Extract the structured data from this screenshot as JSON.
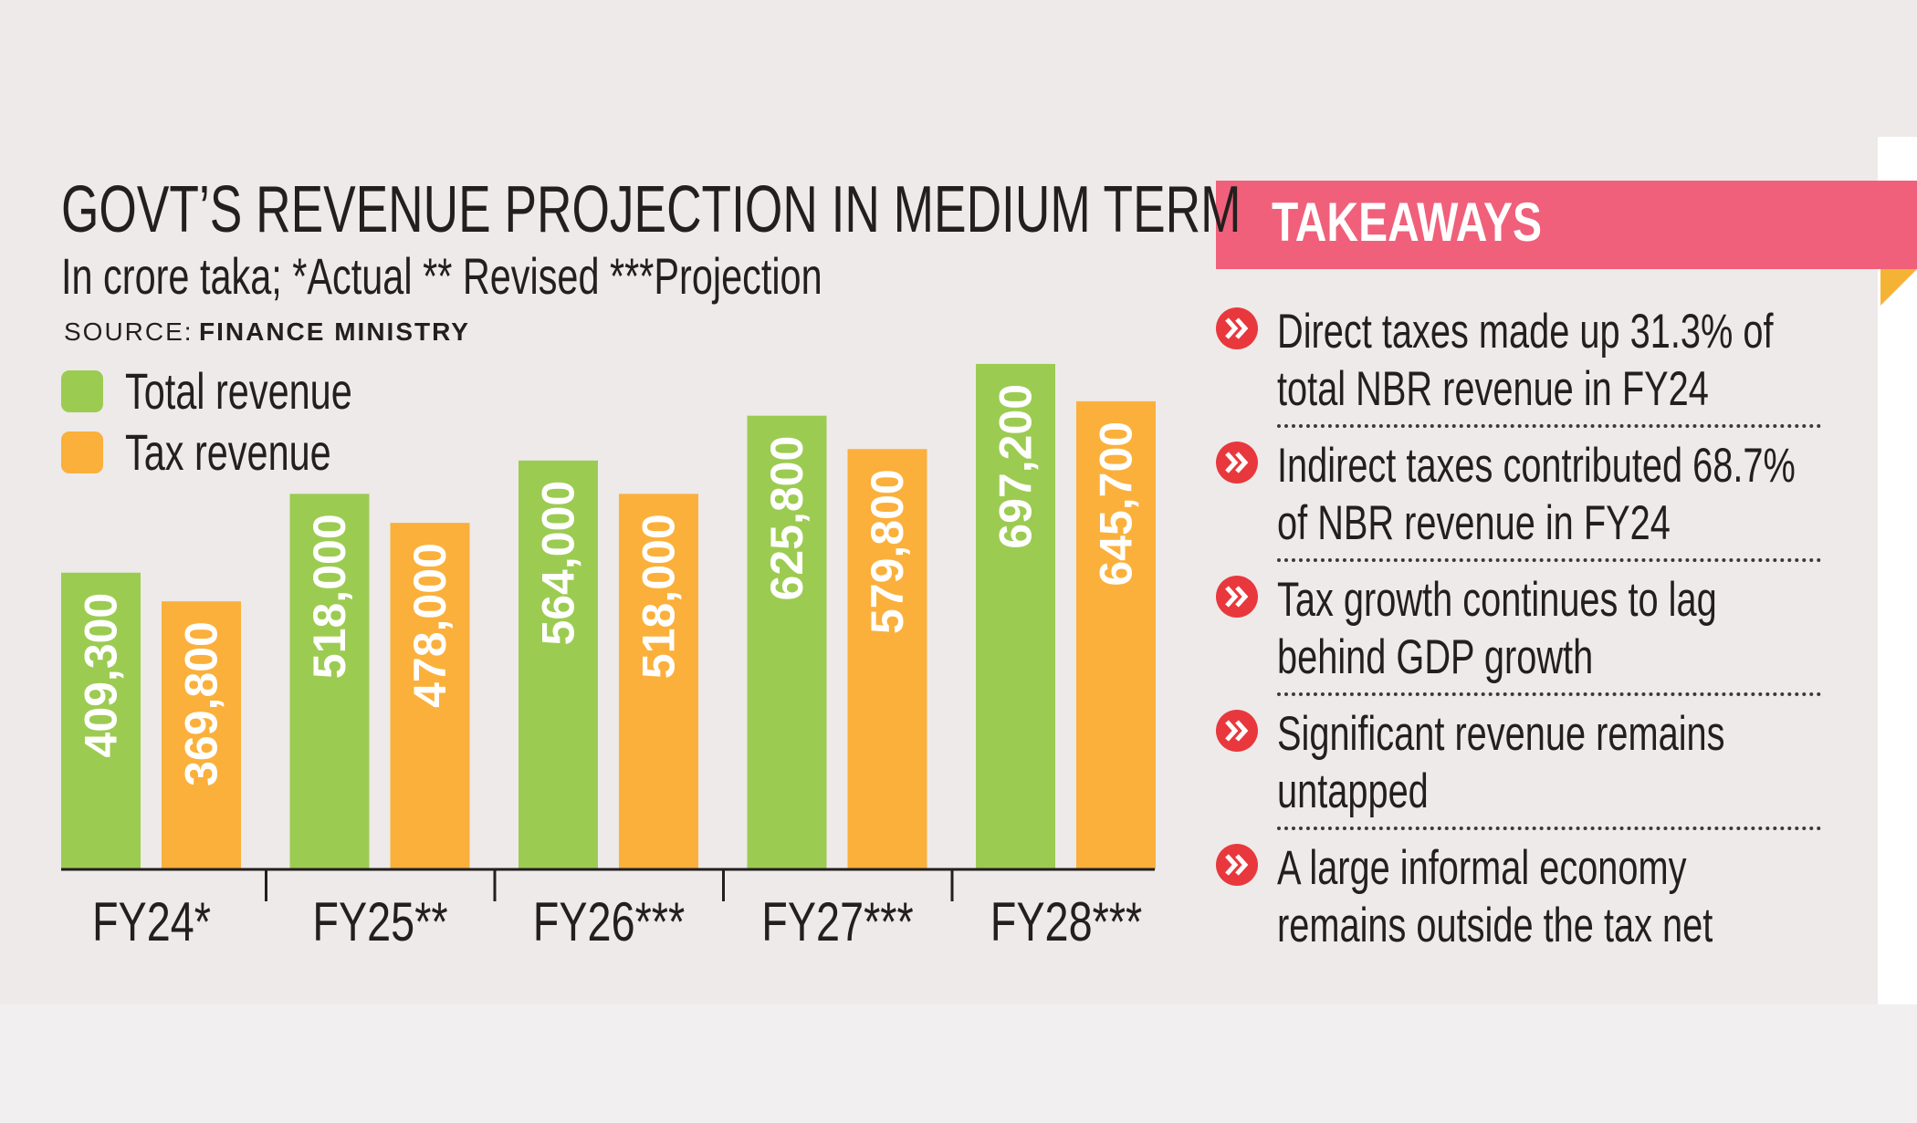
{
  "chart_data": {
    "type": "bar",
    "title": "GOVT’S REVENUE PROJECTION IN MEDIUM TERM",
    "subtitle": "In crore taka; *Actual ** Revised ***Projection",
    "source_label": "SOURCE:",
    "source": "FINANCE MINISTRY",
    "categories": [
      "FY24*",
      "FY25**",
      "FY26***",
      "FY27***",
      "FY28***"
    ],
    "series": [
      {
        "name": "Total revenue",
        "color": "#9ccb52",
        "values": [
          409300,
          518000,
          564000,
          625800,
          697200
        ],
        "value_labels": [
          "409,300",
          "518,000",
          "564,000",
          "625,800",
          "697,200"
        ]
      },
      {
        "name": "Tax revenue",
        "color": "#fbb03b",
        "values": [
          369800,
          478000,
          518000,
          579800,
          645700
        ],
        "value_labels": [
          "369,800",
          "478,000",
          "518,000",
          "579,800",
          "645,700"
        ]
      }
    ],
    "ylim": [
      0,
      750000
    ]
  },
  "takeaways": {
    "title": "TAKEAWAYS",
    "items": [
      "Direct taxes made up 31.3% of total NBR revenue in FY24",
      "Indirect taxes contributed 68.7% of NBR revenue in FY24",
      "Tax growth continues to lag behind GDP growth",
      "Significant revenue remains untapped",
      "A large informal economy remains outside the tax net"
    ]
  }
}
